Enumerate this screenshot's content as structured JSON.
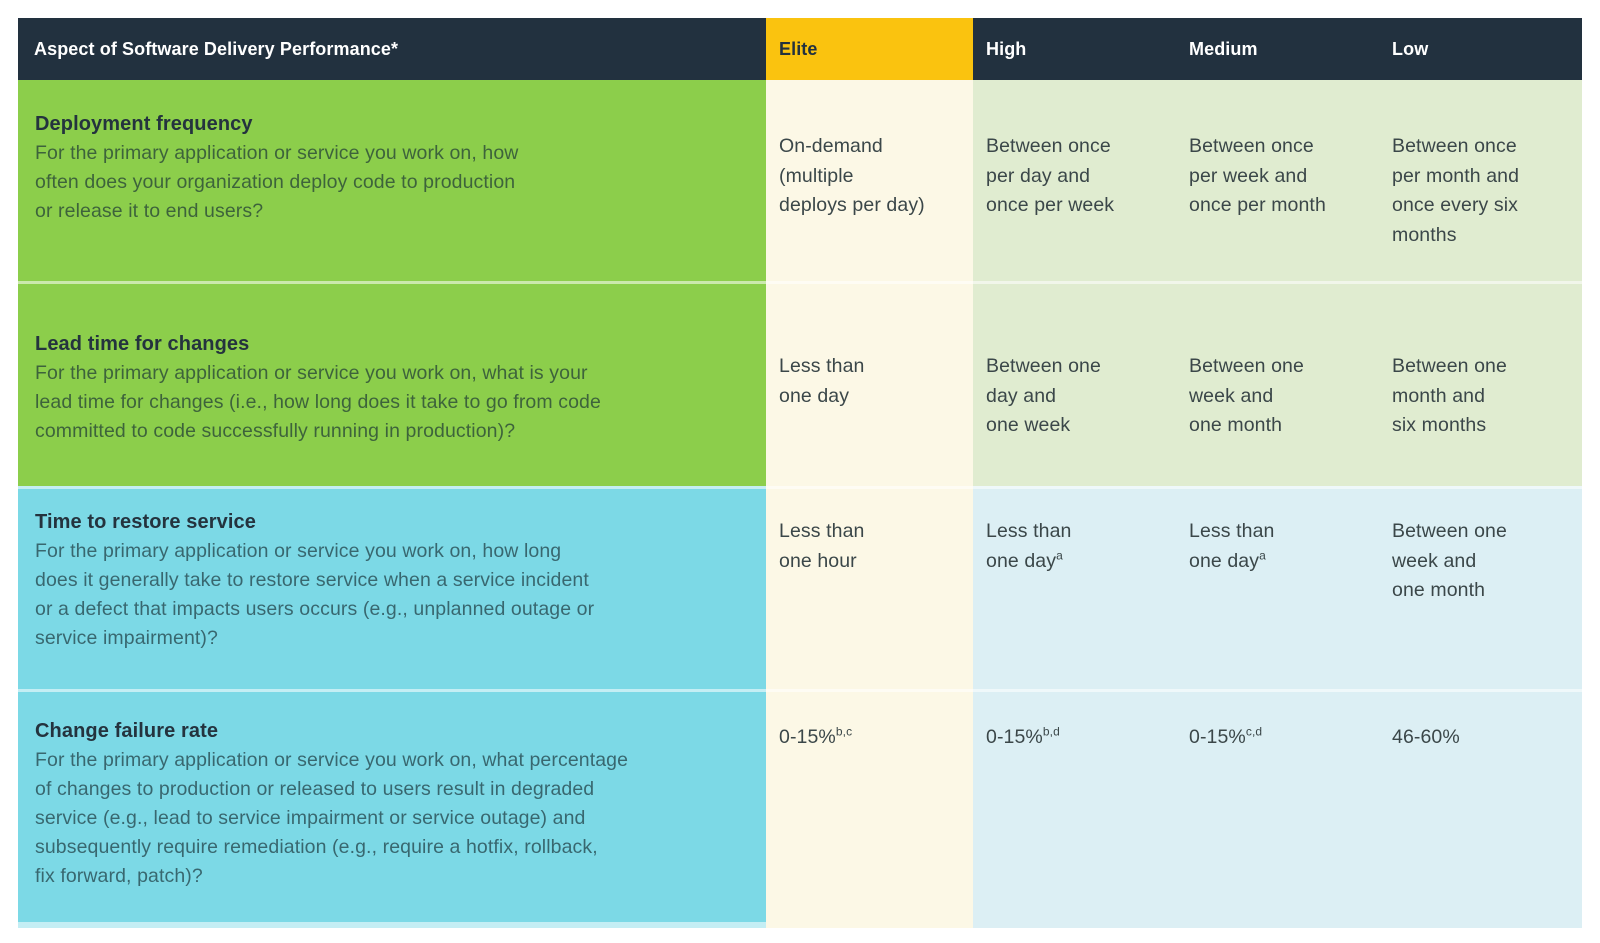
{
  "header": {
    "aspect_label": "Aspect of Software Delivery Performance*",
    "levels": [
      "Elite",
      "High",
      "Medium",
      "Low"
    ]
  },
  "rows": [
    {
      "title": "Deployment frequency",
      "question": "For the primary application or service you work on, how\noften does your organization deploy code to production\nor release it to end users?",
      "values": {
        "elite": {
          "text": "On-demand\n(multiple\ndeploys per day)",
          "sup": ""
        },
        "high": {
          "text": "Between once\nper day and\nonce per week",
          "sup": ""
        },
        "medium": {
          "text": "Between once\nper week and\nonce per month",
          "sup": ""
        },
        "low": {
          "text": "Between once\nper month and\nonce every six\nmonths",
          "sup": ""
        }
      }
    },
    {
      "title": "Lead time for changes",
      "question": "For the primary application or service you work on, what is your\nlead time for changes (i.e., how long does it take to go from code\ncommitted to code successfully running in production)?",
      "values": {
        "elite": {
          "text": "Less than\none day",
          "sup": ""
        },
        "high": {
          "text": "Between one\nday and\none week",
          "sup": ""
        },
        "medium": {
          "text": "Between one\nweek and\none month",
          "sup": ""
        },
        "low": {
          "text": "Between one\nmonth and\nsix months",
          "sup": ""
        }
      }
    },
    {
      "title": "Time to restore service",
      "question": "For the primary application or service you work on, how long\ndoes it generally take to restore service when a service incident\nor a defect that impacts users occurs (e.g., unplanned outage or\nservice impairment)?",
      "values": {
        "elite": {
          "text": "Less than\none hour",
          "sup": ""
        },
        "high": {
          "text": "Less than\none day",
          "sup": "a"
        },
        "medium": {
          "text": "Less than\none day",
          "sup": "a"
        },
        "low": {
          "text": "Between one\nweek and\none month",
          "sup": ""
        }
      }
    },
    {
      "title": "Change failure rate",
      "question": "For the primary application or service you work on, what percentage\nof changes to production or released to users result in degraded\nservice (e.g., lead to service impairment or service outage) and\nsubsequently require remediation (e.g., require a hotfix, rollback,\nfix forward, patch)?",
      "values": {
        "elite": {
          "text": "0-15%",
          "sup": "b,c"
        },
        "high": {
          "text": "0-15%",
          "sup": "b,d"
        },
        "medium": {
          "text": "0-15%",
          "sup": "c,d"
        },
        "low": {
          "text": "46-60%",
          "sup": ""
        }
      }
    }
  ],
  "colors": {
    "navy": "#22313F",
    "yellow": "#FAC30F",
    "green": "#8CCE4B",
    "cyan": "#7CD9E6",
    "cream": "#FCF8E6",
    "lgreen": "#E0ECD0",
    "lblue": "#DCEFF4"
  }
}
